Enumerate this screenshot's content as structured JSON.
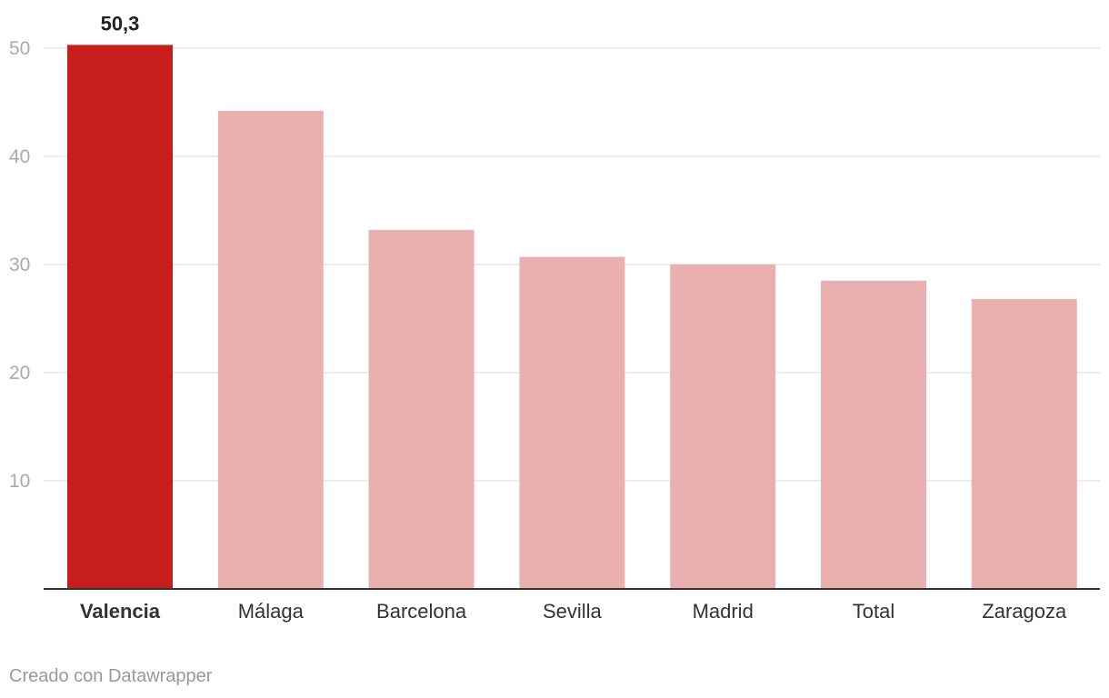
{
  "chart_data": {
    "type": "bar",
    "categories": [
      "Valencia",
      "Málaga",
      "Barcelona",
      "Sevilla",
      "Madrid",
      "Total",
      "Zaragoza"
    ],
    "values": [
      50.3,
      44.2,
      33.2,
      30.7,
      30.0,
      28.5,
      26.8
    ],
    "highlight_category": "Valencia",
    "highlight_label": "50,3",
    "ylim": [
      0,
      50
    ],
    "yticks": [
      "10",
      "20",
      "30",
      "40",
      "50"
    ],
    "ytick_values": [
      10,
      20,
      30,
      40,
      50
    ],
    "grid": true,
    "colors": {
      "highlight": "#c71e1d",
      "bar": "#eab0b0",
      "grid": "#e6e6e6",
      "axis": "#333333",
      "tick_text": "#aaaaaa",
      "label_text": "#333333"
    }
  },
  "footer": {
    "credit": "Creado con Datawrapper"
  }
}
